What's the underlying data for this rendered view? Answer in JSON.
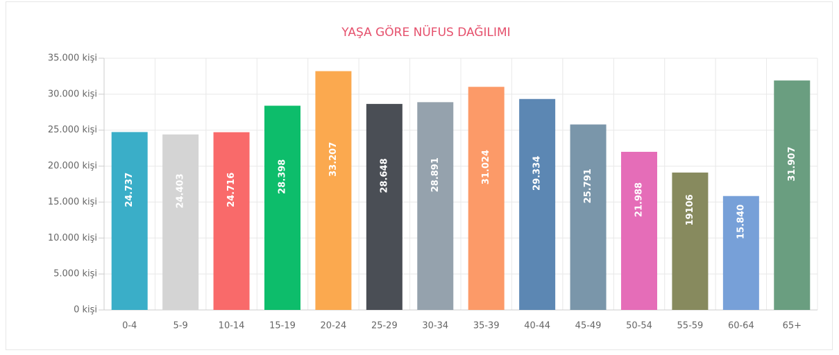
{
  "chart_data": {
    "type": "bar",
    "title": "YAŞA GÖRE NÜFUS DAĞILIMI",
    "categories": [
      "0-4",
      "5-9",
      "10-14",
      "15-19",
      "20-24",
      "25-29",
      "30-34",
      "35-39",
      "40-44",
      "45-49",
      "50-54",
      "55-59",
      "60-64",
      "65+"
    ],
    "values": [
      24737,
      24403,
      24716,
      28398,
      33207,
      28648,
      28891,
      31024,
      29334,
      25791,
      21988,
      19106,
      15840,
      31907
    ],
    "value_labels": [
      "24.737",
      "24.403",
      "24.716",
      "28.398",
      "33.207",
      "28.648",
      "28.891",
      "31.024",
      "29.334",
      "25.791",
      "21.988",
      "19106",
      "15.840",
      "31.907"
    ],
    "colors": [
      "#3aaec8",
      "#d4d4d4",
      "#f96a6a",
      "#0dbd6b",
      "#fba94f",
      "#4a4e55",
      "#95a2ad",
      "#fc9a68",
      "#5c87b3",
      "#7a96aa",
      "#e56db8",
      "#878a5e",
      "#77a0d8",
      "#6a9e80"
    ],
    "ylim": [
      0,
      35000
    ],
    "yticks": [
      {
        "value": 0,
        "label": "0 kişi"
      },
      {
        "value": 5000,
        "label": "5.000 kişi"
      },
      {
        "value": 10000,
        "label": "10.000 kişi"
      },
      {
        "value": 15000,
        "label": "15.000 kişi"
      },
      {
        "value": 20000,
        "label": "20.000 kişi"
      },
      {
        "value": 25000,
        "label": "25.000 kişi"
      },
      {
        "value": 30000,
        "label": "30.000 kişi"
      },
      {
        "value": 35000,
        "label": "35.000 kişi"
      }
    ],
    "grid": true
  }
}
